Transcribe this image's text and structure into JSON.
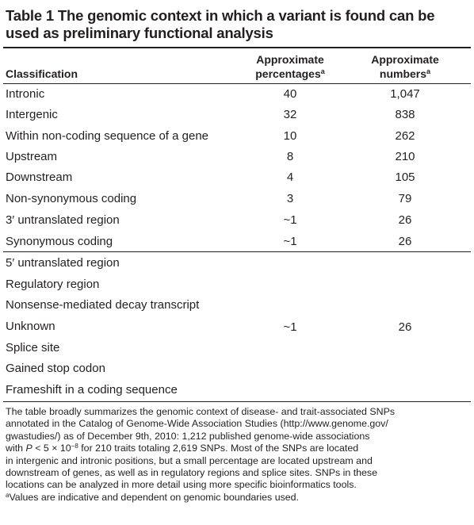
{
  "table": {
    "title_line1": "Table 1  The genomic context in which a variant is found can be",
    "title_line2": "used as preliminary functional analysis",
    "headers": {
      "classification": "Classification",
      "pct_line1": "Approximate",
      "pct_line2": "percentages",
      "pct_sup": "a",
      "num_line1": "Approximate",
      "num_line2": "numbers",
      "num_sup": "a"
    },
    "rows": [
      {
        "classification": "Intronic",
        "percentage": "40",
        "number": "1,047"
      },
      {
        "classification": "Intergenic",
        "percentage": "32",
        "number": "838"
      },
      {
        "classification": "Within non-coding sequence of a gene",
        "percentage": "10",
        "number": "262"
      },
      {
        "classification": "Upstream",
        "percentage": "8",
        "number": "210"
      },
      {
        "classification": "Downstream",
        "percentage": "4",
        "number": "105"
      },
      {
        "classification": "Non-synonymous coding",
        "percentage": "3",
        "number": "79"
      },
      {
        "classification": "3′ untranslated region",
        "percentage": "~1",
        "number": "26"
      },
      {
        "classification": "Synonymous coding",
        "percentage": "~1",
        "number": "26"
      }
    ],
    "group_rows": [
      "5′ untranslated region",
      "Regulatory region",
      "Nonsense-mediated decay transcript",
      "Unknown",
      "Splice site",
      "Gained stop codon",
      "Frameshift in a coding sequence"
    ],
    "group_percentage": "~1",
    "group_number": "26"
  },
  "footnote": {
    "line1": "The table broadly summarizes the genomic context of disease- and trait-associated SNPs",
    "line2": "annotated in the Catalog of Genome-Wide Association Studies (http://www.genome.gov/",
    "line3": "gwastudies/) as of December 9th, 2010: 1,212 published genome-wide associations",
    "line4_pre": "with ",
    "line4_p": "P",
    "line4_lt": " < 5 × 10",
    "line4_exp": "−8",
    "line4_post": " for 210 traits totaling 2,619 SNPs. Most of the SNPs are located",
    "line5": "in intergenic and intronic positions, but a small percentage are located upstream and",
    "line6": "downstream of genes, as well as in regulatory regions and splice sites. SNPs in these",
    "line7": "locations can be analyzed in more detail using more specific bioinformatics tools.",
    "note_sup": "a",
    "note_text": "Values are indicative and dependent on genomic boundaries used."
  }
}
